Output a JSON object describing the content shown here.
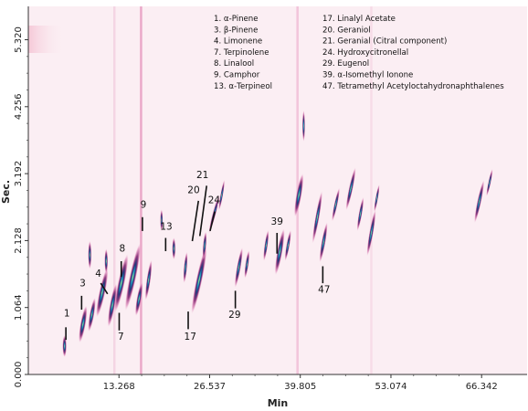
{
  "chart_data": {
    "type": "heatmap",
    "subtype": "GCxGC contour plot",
    "xlabel": "Min",
    "ylabel": "Sec.",
    "xlim": [
      0,
      73.0
    ],
    "ylim": [
      0,
      5.85
    ],
    "x_ticks": [
      {
        "value": 13.268,
        "label": "13.268"
      },
      {
        "value": 26.537,
        "label": "26.537"
      },
      {
        "value": 39.805,
        "label": "39.805"
      },
      {
        "value": 53.074,
        "label": "53.074"
      },
      {
        "value": 66.342,
        "label": "66.342"
      }
    ],
    "y_ticks": [
      {
        "value": 0.0,
        "label": "0.000"
      },
      {
        "value": 1.064,
        "label": "1.064"
      },
      {
        "value": 2.128,
        "label": "2.128"
      },
      {
        "value": 3.192,
        "label": "3.192"
      },
      {
        "value": 4.256,
        "label": "4.256"
      },
      {
        "value": 5.32,
        "label": "5.320"
      }
    ],
    "background_color": "#fbeef3",
    "vertical_streaks": [
      {
        "x": 16.5,
        "color": "#e07aae",
        "opacity": 0.6
      },
      {
        "x": 12.6,
        "color": "#e9a7c8",
        "opacity": 0.35
      },
      {
        "x": 39.4,
        "color": "#ea9cc4",
        "opacity": 0.5
      },
      {
        "x": 50.2,
        "color": "#eeb3d0",
        "opacity": 0.3
      }
    ],
    "legend_left": [
      "1. α-Pinene",
      "3. β-Pinene",
      "4. Limonene",
      "7. Terpinolene",
      "8. Linalool",
      "9. Camphor",
      "13. α-Terpineol"
    ],
    "legend_right": [
      "17. Linalyl Acetate",
      "20. Geraniol",
      "21. Geranial (Citral component)",
      "24. Hydroxycitronellal",
      "29. Eugenol",
      "39. α-Isomethyl Ionone",
      "47. Tetramethyl Acetyloctahydronaphthalenes"
    ],
    "spots": [
      {
        "x": 5.3,
        "y": 0.45,
        "w": 0.6,
        "h": 0.35,
        "tilt": 0
      },
      {
        "x": 8.0,
        "y": 0.8,
        "w": 0.8,
        "h": 0.6,
        "tilt": 10
      },
      {
        "x": 9.3,
        "y": 0.95,
        "w": 0.7,
        "h": 0.55,
        "tilt": 10
      },
      {
        "x": 9.0,
        "y": 1.9,
        "w": 0.5,
        "h": 0.45,
        "tilt": 0
      },
      {
        "x": 10.8,
        "y": 1.3,
        "w": 0.9,
        "h": 0.8,
        "tilt": 12
      },
      {
        "x": 11.4,
        "y": 1.8,
        "w": 0.5,
        "h": 0.4,
        "tilt": 0
      },
      {
        "x": 12.3,
        "y": 1.1,
        "w": 0.8,
        "h": 0.7,
        "tilt": 10
      },
      {
        "x": 13.6,
        "y": 1.45,
        "w": 1.0,
        "h": 0.95,
        "tilt": 12
      },
      {
        "x": 15.3,
        "y": 1.55,
        "w": 1.0,
        "h": 1.1,
        "tilt": 12
      },
      {
        "x": 16.2,
        "y": 1.2,
        "w": 0.7,
        "h": 0.55,
        "tilt": 10
      },
      {
        "x": 17.6,
        "y": 1.5,
        "w": 0.6,
        "h": 0.65,
        "tilt": 8
      },
      {
        "x": 19.5,
        "y": 2.45,
        "w": 0.4,
        "h": 0.35,
        "tilt": 0
      },
      {
        "x": 21.3,
        "y": 2.0,
        "w": 0.5,
        "h": 0.35,
        "tilt": 0
      },
      {
        "x": 23.0,
        "y": 1.7,
        "w": 0.5,
        "h": 0.5,
        "tilt": 5
      },
      {
        "x": 25.0,
        "y": 1.5,
        "w": 0.9,
        "h": 1.1,
        "tilt": 12
      },
      {
        "x": 25.8,
        "y": 2.05,
        "w": 0.5,
        "h": 0.45,
        "tilt": 5
      },
      {
        "x": 27.2,
        "y": 2.55,
        "w": 0.5,
        "h": 0.65,
        "tilt": 15
      },
      {
        "x": 28.3,
        "y": 2.85,
        "w": 0.4,
        "h": 0.5,
        "tilt": 10
      },
      {
        "x": 30.8,
        "y": 1.7,
        "w": 0.6,
        "h": 0.65,
        "tilt": 10
      },
      {
        "x": 32.0,
        "y": 1.75,
        "w": 0.5,
        "h": 0.45,
        "tilt": 8
      },
      {
        "x": 34.8,
        "y": 2.05,
        "w": 0.5,
        "h": 0.5,
        "tilt": 8
      },
      {
        "x": 36.8,
        "y": 1.95,
        "w": 0.8,
        "h": 0.75,
        "tilt": 10
      },
      {
        "x": 38.0,
        "y": 2.05,
        "w": 0.5,
        "h": 0.5,
        "tilt": 10
      },
      {
        "x": 39.6,
        "y": 2.85,
        "w": 0.8,
        "h": 0.7,
        "tilt": 10
      },
      {
        "x": 40.3,
        "y": 3.95,
        "w": 0.2,
        "h": 0.5,
        "tilt": 0
      },
      {
        "x": 42.3,
        "y": 2.5,
        "w": 0.6,
        "h": 0.85,
        "tilt": 10
      },
      {
        "x": 43.2,
        "y": 2.1,
        "w": 0.6,
        "h": 0.65,
        "tilt": 10
      },
      {
        "x": 45.0,
        "y": 2.7,
        "w": 0.5,
        "h": 0.55,
        "tilt": 12
      },
      {
        "x": 47.2,
        "y": 2.95,
        "w": 0.6,
        "h": 0.7,
        "tilt": 12
      },
      {
        "x": 48.6,
        "y": 2.55,
        "w": 0.5,
        "h": 0.55,
        "tilt": 10
      },
      {
        "x": 50.2,
        "y": 2.25,
        "w": 0.6,
        "h": 0.75,
        "tilt": 10
      },
      {
        "x": 51.0,
        "y": 2.8,
        "w": 0.4,
        "h": 0.45,
        "tilt": 10
      },
      {
        "x": 66.0,
        "y": 2.75,
        "w": 0.6,
        "h": 0.7,
        "tilt": 12
      },
      {
        "x": 67.5,
        "y": 3.05,
        "w": 0.4,
        "h": 0.45,
        "tilt": 12
      }
    ],
    "peak_labels": [
      {
        "label": "1",
        "tx": 5.2,
        "ty": 0.92,
        "x1": 5.5,
        "y1": 0.75,
        "x2": 5.5,
        "y2": 0.55
      },
      {
        "label": "3",
        "tx": 7.5,
        "ty": 1.4,
        "x1": 7.8,
        "y1": 1.25,
        "x2": 7.8,
        "y2": 1.03
      },
      {
        "label": "4",
        "tx": 9.8,
        "ty": 1.55,
        "x1": 10.6,
        "y1": 1.45,
        "x2": 11.6,
        "y2": 1.28
      },
      {
        "label": "7",
        "tx": 13.1,
        "ty": 0.55,
        "x1": 13.3,
        "y1": 0.7,
        "x2": 13.3,
        "y2": 0.98
      },
      {
        "label": "8",
        "tx": 13.3,
        "ty": 1.95,
        "x1": 13.6,
        "y1": 1.8,
        "x2": 13.6,
        "y2": 1.55
      },
      {
        "label": "9",
        "tx": 16.4,
        "ty": 2.65,
        "x1": 16.7,
        "y1": 2.5,
        "x2": 16.7,
        "y2": 2.28
      },
      {
        "label": "13",
        "tx": 19.3,
        "ty": 2.3,
        "x1": 20.1,
        "y1": 2.17,
        "x2": 20.1,
        "y2": 1.96
      },
      {
        "label": "17",
        "tx": 22.8,
        "ty": 0.55,
        "x1": 23.4,
        "y1": 0.72,
        "x2": 23.4,
        "y2": 1.0
      },
      {
        "label": "20",
        "tx": 23.3,
        "ty": 2.88,
        "x1": 24.9,
        "y1": 2.76,
        "x2": 24.0,
        "y2": 2.12
      },
      {
        "label": "21",
        "tx": 24.6,
        "ty": 3.12,
        "x1": 26.1,
        "y1": 3.0,
        "x2": 25.1,
        "y2": 2.2
      },
      {
        "label": "24",
        "tx": 26.3,
        "ty": 2.72,
        "x1": 27.3,
        "y1": 2.59,
        "x2": 26.6,
        "y2": 2.28
      },
      {
        "label": "29",
        "tx": 29.3,
        "ty": 0.9,
        "x1": 30.3,
        "y1": 1.05,
        "x2": 30.3,
        "y2": 1.33
      },
      {
        "label": "39",
        "tx": 35.5,
        "ty": 2.38,
        "x1": 36.4,
        "y1": 2.25,
        "x2": 36.4,
        "y2": 1.92
      },
      {
        "label": "47",
        "tx": 42.4,
        "ty": 1.3,
        "x1": 43.1,
        "y1": 1.45,
        "x2": 43.1,
        "y2": 1.72
      }
    ]
  }
}
